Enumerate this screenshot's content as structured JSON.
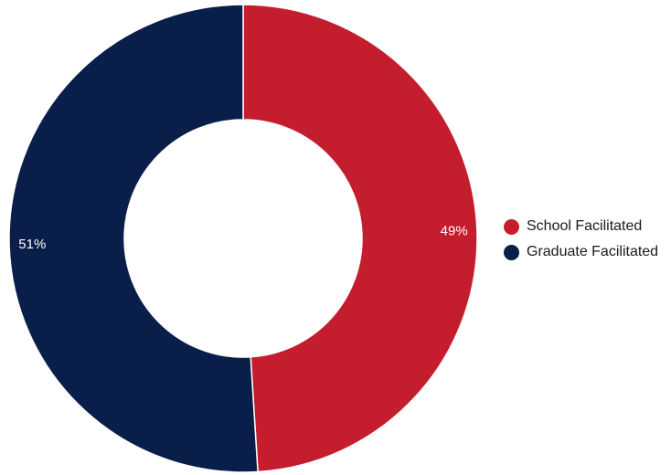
{
  "chart_data": {
    "type": "pie",
    "variant": "donut",
    "categories": [
      "School Facilitated",
      "Graduate Facilitated"
    ],
    "values": [
      49,
      51
    ],
    "value_labels": [
      "49%",
      "51%"
    ],
    "colors": [
      "#c41e2e",
      "#0a1e4a"
    ],
    "title": "",
    "legend": "right",
    "start": "top",
    "direction": "clockwise"
  },
  "legend": {
    "items": [
      {
        "label": "School Facilitated",
        "color": "#c41e2e"
      },
      {
        "label": "Graduate Facilitated",
        "color": "#0a1e4a"
      }
    ]
  }
}
